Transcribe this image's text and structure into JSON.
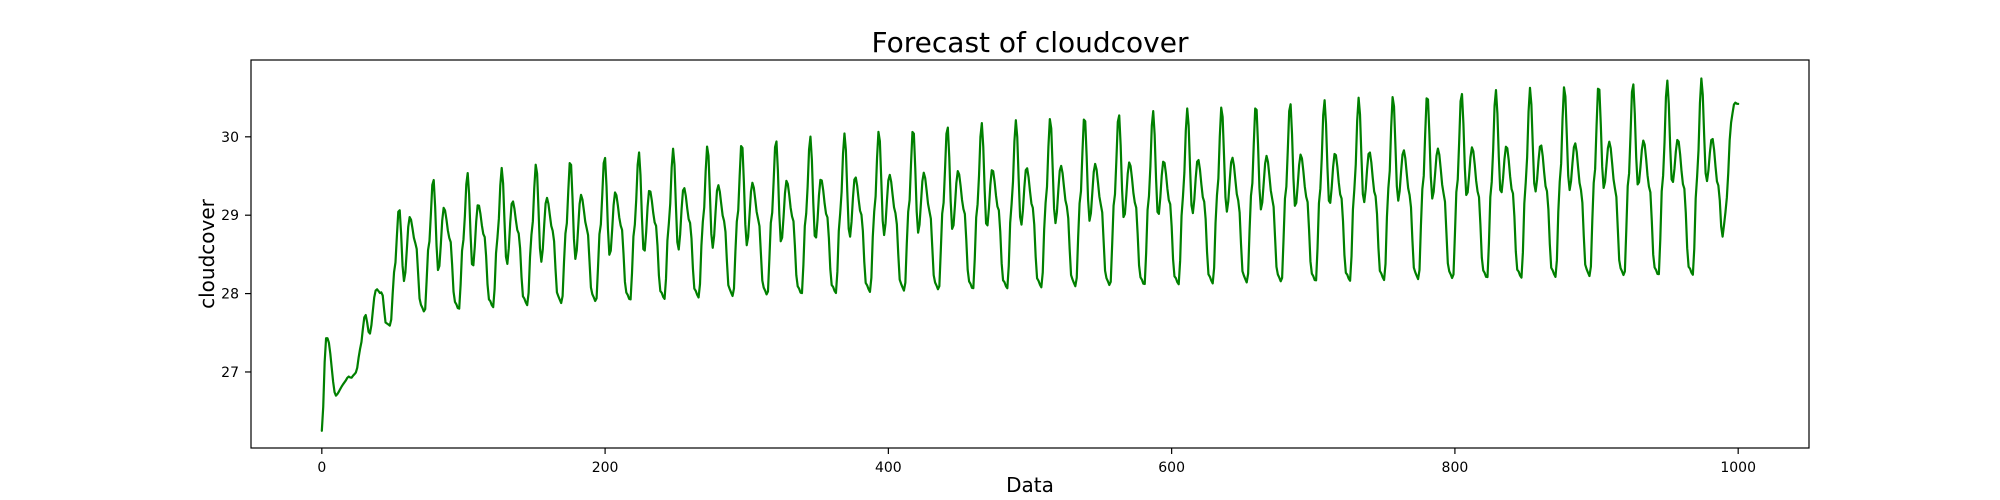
{
  "chart_data": {
    "type": "line",
    "title": "Forecast of cloudcover",
    "xlabel": "Data",
    "ylabel": "cloudcover",
    "xlim": [
      -50,
      1050
    ],
    "ylim": [
      26.03,
      30.98
    ],
    "xticks": [
      0,
      200,
      400,
      600,
      800,
      1000
    ],
    "yticks": [
      27,
      28,
      29,
      30
    ],
    "grid": false,
    "series": [
      {
        "color": "#008000",
        "x_start": 0,
        "x_end": 1000,
        "x_step": 1,
        "start_value": 26.25,
        "end_value": 30.42,
        "first_peak": 27.43,
        "first_trough": 26.66,
        "period": 24.2,
        "peak_high_range": [
          29.05,
          30.77
        ],
        "secondary_peak_range": [
          28.78,
          30.0
        ],
        "main_trough_range": [
          27.44,
          28.25
        ],
        "secondary_trough_range": [
          28.1,
          29.45
        ]
      }
    ]
  }
}
